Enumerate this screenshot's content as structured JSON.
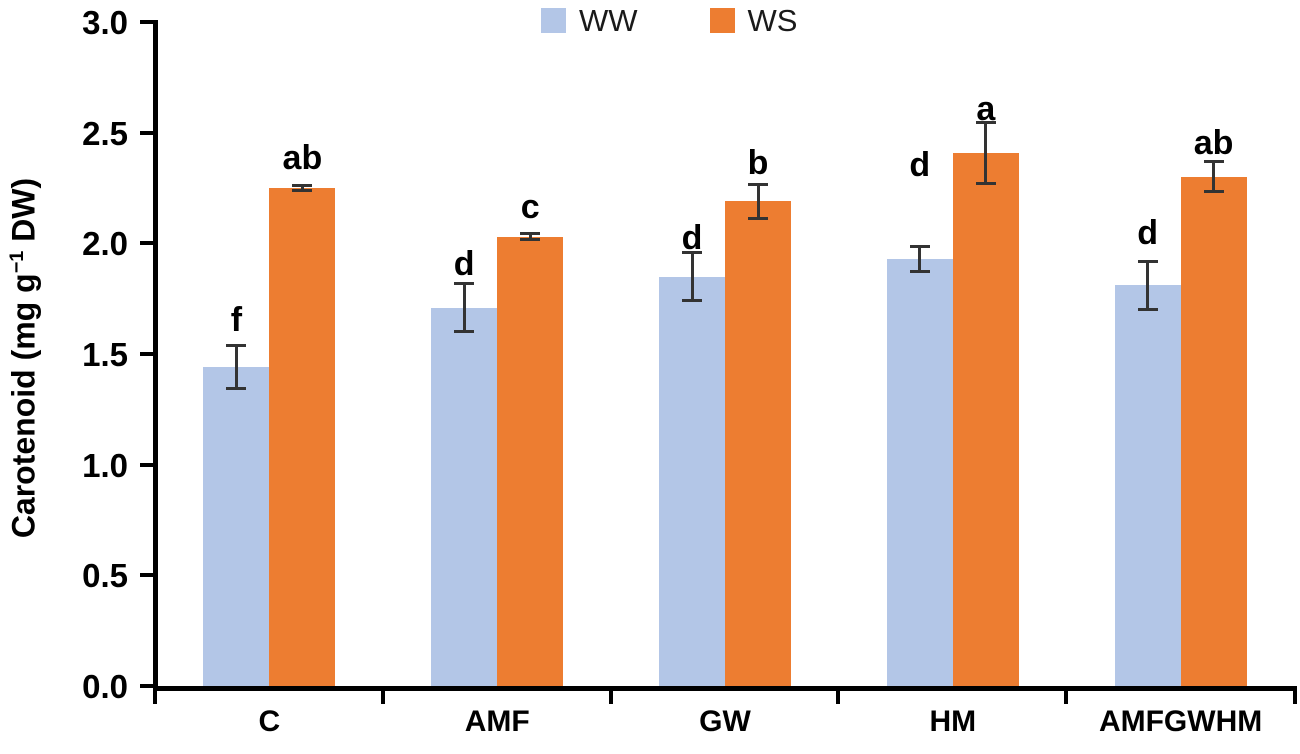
{
  "chart_data": {
    "type": "bar",
    "title": "",
    "ylabel": "Carotenoid (mg g⁻¹ DW)",
    "ylabel_parts": {
      "pre": "Carotenoid (mg g",
      "sup": "−1",
      "post": " DW)"
    },
    "xlabel": "",
    "categories": [
      "C",
      "AMF",
      "GW",
      "HM",
      "AMFGWHM"
    ],
    "series": [
      {
        "name": "WW",
        "color": "#b3c6e7",
        "values": [
          1.44,
          1.71,
          1.85,
          1.93,
          1.81
        ],
        "errors": [
          0.1,
          0.11,
          0.11,
          0.06,
          0.11
        ],
        "sig_letters": [
          "f",
          "d",
          "d",
          "d",
          "d"
        ],
        "sig_letter_y": [
          1.61,
          1.86,
          1.98,
          2.31,
          2.0
        ]
      },
      {
        "name": "WS",
        "color": "#ed7d31",
        "values": [
          2.25,
          2.03,
          2.19,
          2.41,
          2.3
        ],
        "errors": [
          0.015,
          0.015,
          0.08,
          0.14,
          0.07
        ],
        "sig_letters": [
          "ab",
          "c",
          "b",
          "a",
          "ab"
        ],
        "sig_letter_y": [
          2.34,
          2.12,
          2.32,
          2.56,
          2.41
        ]
      }
    ],
    "ylim": [
      0,
      3.0
    ],
    "yticks": [
      "0.0",
      "0.5",
      "1.0",
      "1.5",
      "2.0",
      "2.5",
      "3.0"
    ],
    "grid": false,
    "legend_position": "top-center",
    "axis_color": "#000000",
    "error_bar_color": "#333333"
  }
}
